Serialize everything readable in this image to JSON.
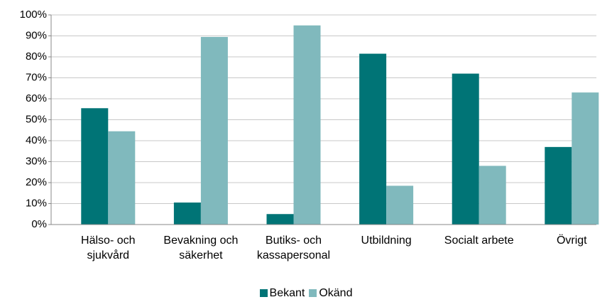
{
  "chart_data": {
    "type": "bar",
    "categories": [
      "Hälso- och sjukvård",
      "Bevakning och säkerhet",
      "Butiks- och kassapersonal",
      "Utbildning",
      "Socialt arbete",
      "Övrigt"
    ],
    "series": [
      {
        "name": "Bekant",
        "color": "#007476",
        "values": [
          55.5,
          10.5,
          5,
          81.5,
          72,
          37
        ]
      },
      {
        "name": "Okänd",
        "color": "#80b9bd",
        "values": [
          44.5,
          89.5,
          95,
          18.5,
          28,
          63
        ]
      }
    ],
    "ylim": [
      0,
      100
    ],
    "yticks": [
      {
        "value": 0,
        "label": "0%"
      },
      {
        "value": 10,
        "label": "10%"
      },
      {
        "value": 20,
        "label": "20%"
      },
      {
        "value": 30,
        "label": "30%"
      },
      {
        "value": 40,
        "label": "40%"
      },
      {
        "value": 50,
        "label": "50%"
      },
      {
        "value": 60,
        "label": "60%"
      },
      {
        "value": 70,
        "label": "70%"
      },
      {
        "value": 80,
        "label": "80%"
      },
      {
        "value": 90,
        "label": "90%"
      },
      {
        "value": 100,
        "label": "100%"
      }
    ],
    "grid": true,
    "legend": "bottom"
  }
}
